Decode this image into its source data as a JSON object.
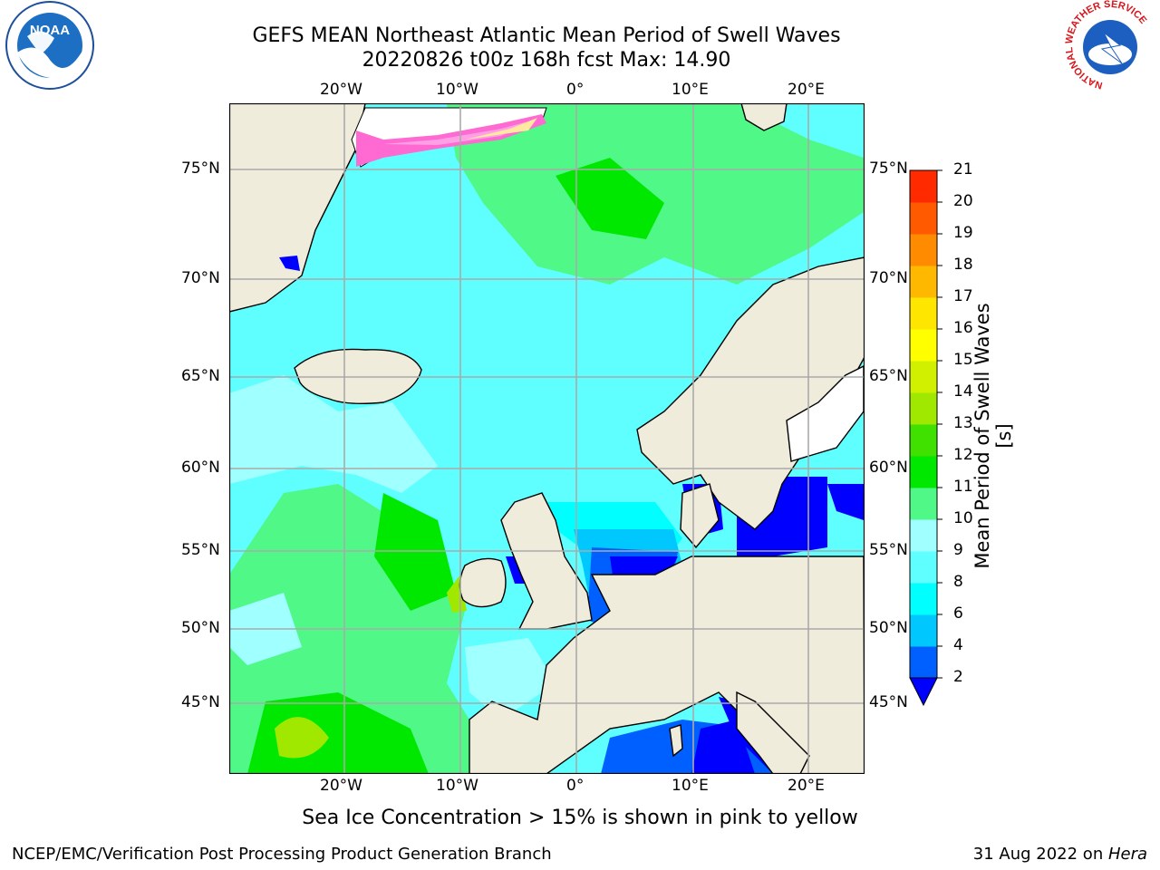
{
  "header": {
    "title_line1": "GEFS MEAN Northeast Atlantic Mean Period of Swell Waves",
    "title_line2": "20220826 t00z 168h fcst   Max: 14.90"
  },
  "map": {
    "lon_ticks_top": [
      "20°W",
      "10°W",
      "0°",
      "10°E",
      "20°E"
    ],
    "lon_ticks_bottom": [
      "20°W",
      "10°W",
      "0°",
      "10°E",
      "20°E"
    ],
    "lat_ticks_left": [
      "75°N",
      "70°N",
      "65°N",
      "60°N",
      "55°N",
      "50°N",
      "45°N"
    ],
    "lat_ticks_right": [
      "75°N",
      "70°N",
      "65°N",
      "60°N",
      "55°N",
      "50°N",
      "45°N"
    ],
    "colors": {
      "land": "#efecdc",
      "ice_free_land": "#ffffff",
      "coast": "#000000",
      "grid": "#aaaaaa"
    }
  },
  "colorbar": {
    "label": "Mean Period of Swell Waves [s]",
    "ticks": [
      "2",
      "4",
      "6",
      "8",
      "9",
      "10",
      "11",
      "12",
      "13",
      "14",
      "15",
      "16",
      "17",
      "18",
      "19",
      "20",
      "21"
    ],
    "level_colors": [
      "#0060ff",
      "#00c8ff",
      "#00ffff",
      "#60ffff",
      "#a0ffff",
      "#50f888",
      "#00e800",
      "#40e000",
      "#a0e800",
      "#d0f000",
      "#ffff00",
      "#ffe600",
      "#ffb800",
      "#ff8c00",
      "#ff5a00",
      "#ff2a00"
    ],
    "under_color": "#0000ff"
  },
  "note": "Sea Ice Concentration > 15% is shown in pink to yellow",
  "footer": {
    "left": "NCEP/EMC/Verification Post Processing Product Generation Branch",
    "right_prefix": "31 Aug 2022 on ",
    "right_host": "Hera"
  },
  "logos": {
    "noaa": "NOAA",
    "nws": "NATIONAL WEATHER SERVICE"
  }
}
